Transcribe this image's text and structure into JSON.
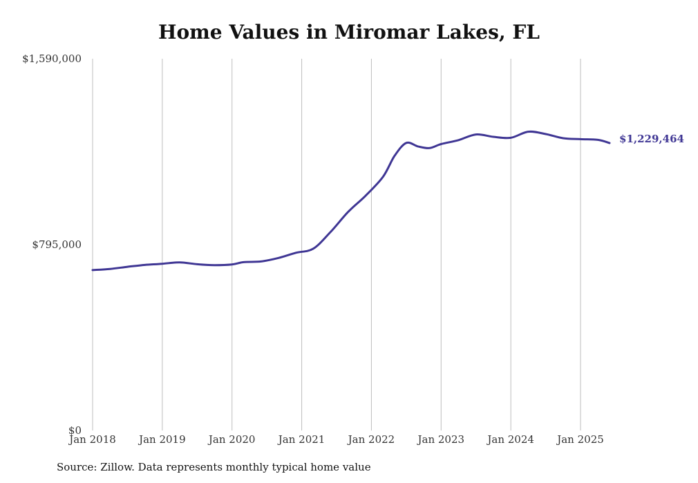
{
  "chart_data": {
    "type": "line",
    "title": "Home Values in Miromar Lakes, FL",
    "xlabel": "",
    "ylabel": "",
    "ylim": [
      0,
      1590000
    ],
    "y_ticks": [
      {
        "value": 0,
        "label": "$0"
      },
      {
        "value": 795000,
        "label": "$795,000"
      },
      {
        "value": 1590000,
        "label": "$1,590,000"
      }
    ],
    "x_ticks": [
      "Jan 2018",
      "Jan 2019",
      "Jan 2020",
      "Jan 2021",
      "Jan 2022",
      "Jan 2023",
      "Jan 2024",
      "Jan 2025"
    ],
    "grid": "vertical",
    "series": [
      {
        "color": "#3f3694",
        "end_label": "$1,229,464",
        "points": [
          [
            "2018-01",
            686000
          ],
          [
            "2018-04",
            691000
          ],
          [
            "2018-07",
            700000
          ],
          [
            "2018-10",
            708000
          ],
          [
            "2019-01",
            713000
          ],
          [
            "2019-04",
            719000
          ],
          [
            "2019-07",
            711000
          ],
          [
            "2019-10",
            707000
          ],
          [
            "2020-01",
            710000
          ],
          [
            "2020-03",
            720000
          ],
          [
            "2020-06",
            723000
          ],
          [
            "2020-09",
            738000
          ],
          [
            "2020-12",
            760000
          ],
          [
            "2021-03",
            778000
          ],
          [
            "2021-06",
            850000
          ],
          [
            "2021-09",
            935000
          ],
          [
            "2021-12",
            1004000
          ],
          [
            "2022-03",
            1085000
          ],
          [
            "2022-05",
            1175000
          ],
          [
            "2022-07",
            1230000
          ],
          [
            "2022-09",
            1215000
          ],
          [
            "2022-11",
            1208000
          ],
          [
            "2023-01",
            1225000
          ],
          [
            "2023-04",
            1242000
          ],
          [
            "2023-07",
            1266000
          ],
          [
            "2023-10",
            1256000
          ],
          [
            "2024-01",
            1252000
          ],
          [
            "2024-04",
            1278000
          ],
          [
            "2024-07",
            1268000
          ],
          [
            "2024-10",
            1250000
          ],
          [
            "2025-01",
            1246000
          ],
          [
            "2025-04",
            1243000
          ],
          [
            "2025-06",
            1229464
          ]
        ]
      }
    ]
  },
  "source_note": "Source: Zillow. Data represents monthly typical home value"
}
